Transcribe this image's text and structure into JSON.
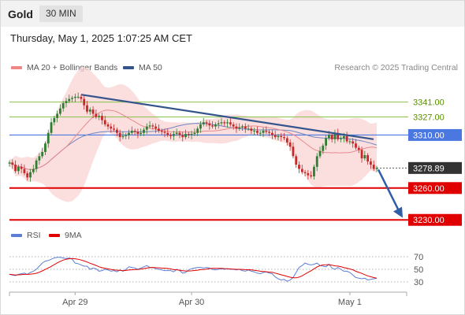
{
  "header": {
    "title": "Gold",
    "timeframe": "30 MIN"
  },
  "timestamp": "Thursday, May 1, 2025 1:07:25 AM CET",
  "legend": {
    "ma20": {
      "label": "MA 20 + Bollinger Bands",
      "color": "#f08585"
    },
    "ma50": {
      "label": "MA 50",
      "color": "#34558b"
    },
    "credit": "Research © 2025 Trading Central"
  },
  "rsi_legend": {
    "rsi": {
      "label": "RSI",
      "color": "#5b7fd6"
    },
    "ma9": {
      "label": "9MA",
      "color": "#e00000"
    }
  },
  "colors": {
    "up": "#2e7d32",
    "down": "#c62828",
    "support": "#e00000",
    "pivot": "#4a78e0",
    "resistance": "#8bc34a",
    "trendline": "#34558b"
  },
  "chart_data": [
    {
      "type": "candlestick",
      "x_ticks": [
        "Apr 29",
        "Apr 30",
        "May 1"
      ],
      "ylim": [
        3222,
        3363
      ],
      "last_price": 3278.89,
      "levels": [
        {
          "value": 3341.0,
          "label": "3341.00",
          "kind": "resistance"
        },
        {
          "value": 3327.0,
          "label": "3327.00",
          "kind": "resistance"
        },
        {
          "value": 3310.0,
          "label": "3310.00",
          "kind": "pivot"
        },
        {
          "value": 3260.0,
          "label": "3260.00",
          "kind": "support"
        },
        {
          "value": 3230.0,
          "label": "3230.00",
          "kind": "support"
        }
      ],
      "last_price_label": "3278.89",
      "close": [
        3284,
        3282,
        3276,
        3280,
        3278,
        3274,
        3270,
        3275,
        3278,
        3286,
        3290,
        3294,
        3302,
        3312,
        3322,
        3326,
        3330,
        3335,
        3340,
        3342,
        3344,
        3345,
        3346,
        3346,
        3344,
        3338,
        3332,
        3334,
        3330,
        3327,
        3328,
        3324,
        3320,
        3318,
        3316,
        3315,
        3312,
        3308,
        3309,
        3310,
        3312,
        3314,
        3313,
        3311,
        3312,
        3315,
        3318,
        3319,
        3318,
        3316,
        3314,
        3313,
        3312,
        3310,
        3309,
        3311,
        3312,
        3310,
        3308,
        3311,
        3310,
        3311,
        3312,
        3316,
        3320,
        3322,
        3321,
        3319,
        3318,
        3320,
        3321,
        3322,
        3321,
        3322,
        3320,
        3318,
        3316,
        3317,
        3318,
        3316,
        3316,
        3314,
        3314,
        3312,
        3312,
        3314,
        3313,
        3312,
        3310,
        3308,
        3309,
        3308,
        3307,
        3303,
        3299,
        3290,
        3282,
        3278,
        3275,
        3274,
        3272,
        3271,
        3280,
        3290,
        3295,
        3300,
        3307,
        3310,
        3306,
        3312,
        3306,
        3307,
        3309,
        3304,
        3304,
        3302,
        3298,
        3296,
        3288,
        3291,
        3285,
        3282,
        3278,
        3279
      ],
      "rsi": {
        "levels": [
          70,
          50,
          30
        ],
        "ylim": [
          20,
          85
        ],
        "values": [
          42,
          41,
          40,
          42,
          43,
          44,
          42,
          45,
          47,
          50,
          55,
          60,
          63,
          64,
          66,
          68,
          69,
          69,
          68,
          67,
          68,
          66,
          60,
          59,
          57,
          55,
          55,
          50,
          52,
          51,
          47,
          48,
          50,
          49,
          47,
          48,
          46,
          49,
          47,
          50,
          54,
          53,
          52,
          50,
          52,
          54,
          56,
          53,
          53,
          51,
          50,
          49,
          48,
          48,
          48,
          46,
          50,
          48,
          44,
          45,
          49,
          51,
          52,
          53,
          53,
          52,
          53,
          52,
          50,
          49,
          50,
          51,
          50,
          51,
          50,
          50,
          49,
          50,
          48,
          47,
          49,
          47,
          46,
          44,
          43,
          45,
          46,
          44,
          43,
          38,
          35,
          33,
          34,
          31,
          33,
          37,
          45,
          53,
          56,
          60,
          58,
          57,
          58,
          60,
          56,
          55,
          54,
          58,
          52,
          50,
          53,
          50,
          47,
          47,
          45,
          41,
          37,
          36,
          35,
          36,
          33,
          34,
          35,
          36
        ]
      }
    }
  ]
}
